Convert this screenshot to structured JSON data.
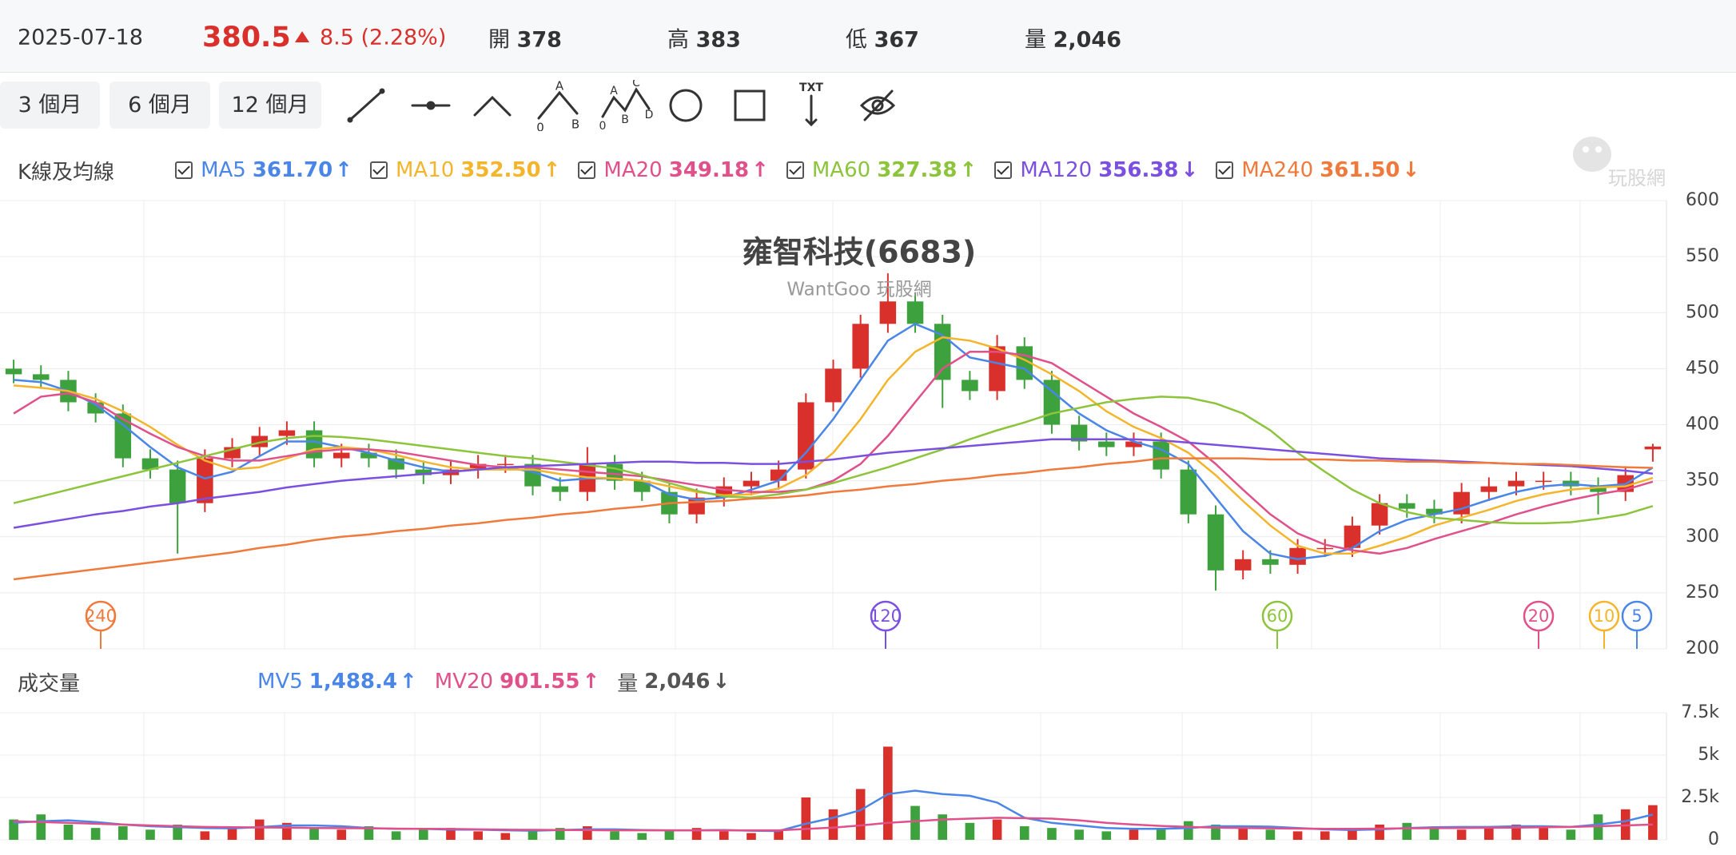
{
  "header": {
    "date": "2025-07-18",
    "price": "380.5",
    "change": "8.5 (2.28%)",
    "stats": [
      {
        "label": "開",
        "value": "378"
      },
      {
        "label": "高",
        "value": "383"
      },
      {
        "label": "低",
        "value": "367"
      },
      {
        "label": "量",
        "value": "2,046"
      }
    ]
  },
  "toolbar": {
    "ranges": [
      "3 個月",
      "6 個月",
      "12 個月"
    ],
    "icon_texts": [
      [
        "A",
        "0",
        "B"
      ],
      [
        "A",
        "C",
        "0",
        "B",
        "D"
      ],
      [
        "TXT"
      ]
    ]
  },
  "watermark": "玩股網",
  "chart_data": [
    {
      "type": "candlestick",
      "label": "K線及均線",
      "title": "雍智科技(6683)",
      "subtitle": "WantGoo 玩股網",
      "up_color": "#d9302c",
      "down_color": "#3da13d",
      "open": [
        450,
        445,
        440,
        420,
        410,
        370,
        360,
        330,
        370,
        380,
        390,
        395,
        370,
        375,
        370,
        360,
        355,
        360,
        365,
        365,
        345,
        340,
        365,
        350,
        340,
        320,
        335,
        345,
        350,
        360,
        420,
        450,
        490,
        510,
        490,
        440,
        430,
        470,
        440,
        400,
        385,
        380,
        385,
        360,
        320,
        270,
        280,
        275,
        290,
        290,
        310,
        330,
        325,
        320,
        340,
        345,
        350,
        350,
        345,
        340,
        378
      ],
      "high": [
        458,
        453,
        448,
        428,
        418,
        378,
        368,
        378,
        388,
        398,
        403,
        403,
        383,
        383,
        378,
        368,
        368,
        373,
        373,
        373,
        353,
        380,
        373,
        358,
        348,
        343,
        353,
        358,
        368,
        428,
        458,
        498,
        535,
        518,
        498,
        448,
        480,
        478,
        448,
        408,
        393,
        393,
        393,
        368,
        328,
        288,
        288,
        298,
        298,
        318,
        338,
        338,
        333,
        348,
        353,
        358,
        358,
        358,
        353,
        363,
        383
      ],
      "low": [
        437,
        432,
        412,
        402,
        362,
        352,
        285,
        322,
        362,
        372,
        382,
        362,
        362,
        362,
        352,
        347,
        347,
        352,
        357,
        337,
        332,
        332,
        342,
        332,
        312,
        312,
        327,
        337,
        342,
        352,
        412,
        442,
        482,
        482,
        415,
        422,
        422,
        432,
        392,
        377,
        372,
        372,
        352,
        312,
        252,
        262,
        267,
        267,
        282,
        282,
        302,
        317,
        312,
        312,
        332,
        337,
        342,
        337,
        320,
        332,
        367
      ],
      "close": [
        445,
        440,
        420,
        410,
        370,
        360,
        330,
        370,
        380,
        390,
        395,
        370,
        375,
        370,
        360,
        355,
        360,
        365,
        365,
        345,
        340,
        365,
        350,
        340,
        320,
        335,
        345,
        350,
        360,
        420,
        450,
        490,
        510,
        490,
        440,
        430,
        470,
        440,
        400,
        385,
        380,
        385,
        360,
        320,
        270,
        280,
        275,
        290,
        290,
        310,
        330,
        325,
        320,
        340,
        345,
        350,
        350,
        345,
        340,
        355,
        380.5
      ],
      "series": [
        {
          "name": "MA5",
          "color": "#4a86e8",
          "legend_value": "361.70",
          "trend": "↑",
          "values": [
            440,
            438,
            430,
            418,
            400,
            380,
            362,
            352,
            358,
            372,
            385,
            385,
            380,
            375,
            368,
            362,
            358,
            360,
            362,
            358,
            350,
            352,
            352,
            350,
            338,
            333,
            335,
            342,
            350,
            375,
            405,
            440,
            475,
            490,
            480,
            460,
            455,
            450,
            430,
            410,
            395,
            385,
            378,
            365,
            335,
            305,
            285,
            280,
            283,
            290,
            305,
            315,
            320,
            325,
            333,
            340,
            345,
            347,
            345,
            347,
            361.7
          ]
        },
        {
          "name": "MA10",
          "color": "#f4b52c",
          "legend_value": "352.50",
          "trend": "↑",
          "values": [
            435,
            433,
            430,
            423,
            412,
            398,
            382,
            368,
            360,
            362,
            370,
            378,
            380,
            378,
            373,
            367,
            362,
            360,
            360,
            360,
            356,
            353,
            352,
            350,
            345,
            340,
            337,
            338,
            343,
            355,
            375,
            405,
            440,
            465,
            478,
            475,
            468,
            458,
            445,
            430,
            412,
            398,
            388,
            375,
            355,
            332,
            310,
            292,
            285,
            285,
            292,
            300,
            310,
            317,
            324,
            332,
            338,
            342,
            344,
            345,
            352.5
          ]
        },
        {
          "name": "MA20",
          "color": "#e0508a",
          "legend_value": "349.18",
          "trend": "↑",
          "values": [
            410,
            425,
            428,
            420,
            405,
            392,
            380,
            372,
            368,
            368,
            372,
            376,
            378,
            378,
            376,
            372,
            368,
            364,
            362,
            362,
            360,
            358,
            356,
            354,
            350,
            346,
            342,
            340,
            340,
            342,
            350,
            365,
            390,
            420,
            450,
            465,
            465,
            462,
            455,
            440,
            425,
            410,
            398,
            385,
            365,
            342,
            320,
            303,
            293,
            288,
            285,
            290,
            298,
            305,
            312,
            320,
            327,
            333,
            338,
            342,
            349.18
          ]
        },
        {
          "name": "MA60",
          "color": "#8cc43c",
          "legend_value": "327.38",
          "trend": "↑",
          "values": [
            330,
            336,
            342,
            348,
            354,
            360,
            366,
            372,
            378,
            384,
            388,
            390,
            389,
            387,
            384,
            381,
            378,
            375,
            372,
            370,
            367,
            364,
            361,
            355,
            348,
            341,
            336,
            335,
            338,
            342,
            348,
            355,
            362,
            370,
            378,
            387,
            395,
            402,
            410,
            415,
            420,
            423,
            425,
            424,
            419,
            410,
            395,
            375,
            358,
            342,
            330,
            322,
            317,
            315,
            313,
            312,
            312,
            313,
            316,
            320,
            327.38
          ]
        },
        {
          "name": "MA120",
          "color": "#7b4fe0",
          "legend_value": "356.38",
          "trend": "↓",
          "values": [
            308,
            312,
            316,
            320,
            323,
            327,
            330,
            334,
            337,
            340,
            344,
            347,
            350,
            352,
            354,
            356,
            358,
            360,
            362,
            363,
            364,
            365,
            366,
            367,
            367,
            366,
            366,
            365,
            365,
            367,
            369,
            372,
            375,
            377,
            379,
            381,
            383,
            385,
            387,
            387,
            387,
            387,
            386,
            384,
            382,
            380,
            378,
            376,
            374,
            372,
            370,
            369,
            368,
            367,
            366,
            365,
            364,
            363,
            361,
            359,
            356.38
          ]
        },
        {
          "name": "MA240",
          "color": "#f07a3c",
          "legend_value": "361.50",
          "trend": "↓",
          "values": [
            262,
            265,
            268,
            271,
            274,
            277,
            280,
            283,
            286,
            290,
            293,
            297,
            300,
            302,
            305,
            307,
            310,
            312,
            315,
            317,
            320,
            322,
            325,
            327,
            330,
            331,
            332,
            334,
            335,
            337,
            340,
            342,
            345,
            347,
            350,
            352,
            355,
            357,
            360,
            362,
            365,
            367,
            370,
            370,
            370,
            370,
            369,
            369,
            369,
            368,
            368,
            367,
            367,
            366,
            366,
            365,
            365,
            364,
            363,
            362,
            361.5
          ]
        }
      ],
      "markers": [
        {
          "label": "240",
          "color": "#f07a3c"
        },
        {
          "label": "120",
          "color": "#7b4fe0"
        },
        {
          "label": "60",
          "color": "#8cc43c"
        },
        {
          "label": "20",
          "color": "#e0508a"
        },
        {
          "label": "10",
          "color": "#f4b52c"
        },
        {
          "label": "5",
          "color": "#4a86e8"
        }
      ],
      "ylim": [
        200,
        600
      ],
      "yticks": [
        200,
        250,
        300,
        350,
        400,
        450,
        500,
        550,
        600
      ],
      "grid": true
    },
    {
      "type": "volume",
      "label": "成交量",
      "values": [
        1200,
        1500,
        900,
        700,
        800,
        600,
        900,
        500,
        700,
        1200,
        1000,
        700,
        600,
        800,
        500,
        600,
        700,
        500,
        400,
        600,
        700,
        800,
        500,
        400,
        600,
        700,
        500,
        400,
        600,
        2500,
        1800,
        3000,
        5500,
        2000,
        1500,
        1000,
        1200,
        800,
        700,
        600,
        500,
        600,
        700,
        1100,
        900,
        700,
        600,
        500,
        500,
        600,
        900,
        1000,
        700,
        600,
        800,
        900,
        700,
        600,
        1500,
        1800,
        2046
      ],
      "series": [
        {
          "name": "MV5",
          "color": "#4a86e8",
          "legend_value": "1,488.4",
          "trend": "↑",
          "values": [
            1000,
            1100,
            1150,
            1050,
            900,
            800,
            750,
            700,
            680,
            750,
            850,
            850,
            800,
            700,
            650,
            650,
            600,
            600,
            560,
            540,
            580,
            620,
            620,
            580,
            560,
            560,
            580,
            540,
            520,
            950,
            1300,
            1750,
            2700,
            2900,
            2700,
            2600,
            2200,
            1300,
            1000,
            850,
            700,
            650,
            650,
            700,
            800,
            800,
            780,
            700,
            620,
            580,
            620,
            700,
            740,
            760,
            760,
            800,
            800,
            760,
            900,
            1100,
            1488.4
          ]
        },
        {
          "name": "MV20",
          "color": "#e0508a",
          "legend_value": "901.55",
          "trend": "↑",
          "values": [
            1100,
            1050,
            1000,
            950,
            900,
            850,
            800,
            760,
            740,
            730,
            720,
            700,
            690,
            680,
            660,
            650,
            640,
            620,
            600,
            590,
            580,
            570,
            560,
            560,
            560,
            560,
            560,
            560,
            560,
            640,
            720,
            850,
            1000,
            1100,
            1200,
            1250,
            1300,
            1280,
            1250,
            1150,
            1000,
            900,
            820,
            760,
            720,
            700,
            680,
            660,
            650,
            650,
            660,
            680,
            690,
            700,
            710,
            720,
            740,
            760,
            800,
            850,
            901.55
          ]
        }
      ],
      "total": {
        "name": "量",
        "legend_value": "2,046",
        "trend": "↓",
        "color": "#555555"
      },
      "ylim": [
        0,
        7500
      ],
      "yticks": [
        0,
        {
          "value": 2500,
          "label": "2.5k"
        },
        {
          "value": 5000,
          "label": "5k"
        },
        {
          "value": 7500,
          "label": "7.5k"
        }
      ],
      "grid": true
    }
  ]
}
